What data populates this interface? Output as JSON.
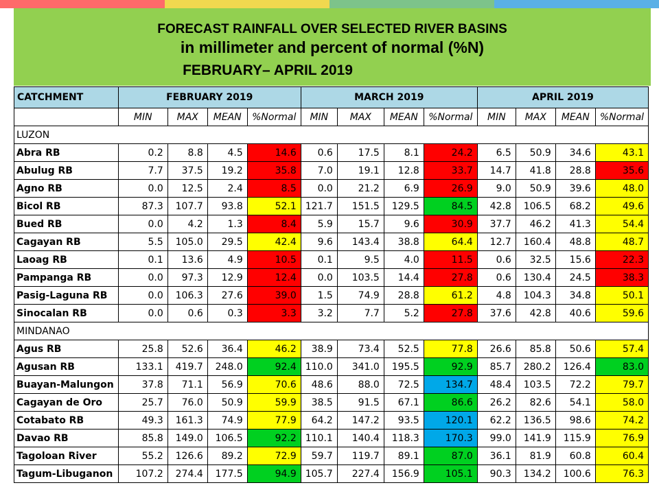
{
  "colors": {
    "header_bg": "#92d050",
    "table_header_bg": "#add8e6",
    "stripes": [
      "#ff6a6a",
      "#f0d84f",
      "#7dc38a",
      "#5ab0e6"
    ],
    "category_colors": {
      "red": "#ff0000",
      "yellow": "#ffff00",
      "green": "#00d020",
      "blue": "#00a8e8"
    }
  },
  "title": {
    "line1": "FORECAST RAINFALL OVER SELECTED RIVER BASINS",
    "line2": "in millimeter  and percent of normal (%N)",
    "line3": "FEBRUARY– APRIL 2019"
  },
  "table": {
    "catchment_label": "CATCHMENT",
    "months": [
      "FEBRUARY 2019",
      "MARCH 2019",
      "APRIL 2019"
    ],
    "subheaders": [
      "MIN",
      "MAX",
      "MEAN",
      "%Normal"
    ],
    "sections": [
      {
        "name": "LUZON",
        "rows": [
          {
            "name": "Abra RB",
            "values": [
              "0.2",
              "8.8",
              "4.5",
              "14.6",
              "0.6",
              "17.5",
              "8.1",
              "24.2",
              "6.5",
              "50.9",
              "34.6",
              "43.1"
            ],
            "colors": [
              "red",
              "red",
              "yellow"
            ]
          },
          {
            "name": "Abulug RB",
            "values": [
              "7.7",
              "37.5",
              "19.2",
              "35.8",
              "7.0",
              "19.1",
              "12.8",
              "33.7",
              "14.7",
              "41.8",
              "28.8",
              "35.6"
            ],
            "colors": [
              "red",
              "red",
              "red"
            ]
          },
          {
            "name": "Agno RB",
            "values": [
              "0.0",
              "12.5",
              "2.4",
              "8.5",
              "0.0",
              "21.2",
              "6.9",
              "26.9",
              "9.0",
              "50.9",
              "39.6",
              "48.0"
            ],
            "colors": [
              "red",
              "red",
              "yellow"
            ]
          },
          {
            "name": "Bicol RB",
            "values": [
              "87.3",
              "107.7",
              "93.8",
              "52.1",
              "121.7",
              "151.5",
              "129.5",
              "84.5",
              "42.8",
              "106.5",
              "68.2",
              "49.6"
            ],
            "colors": [
              "yellow",
              "green",
              "yellow"
            ]
          },
          {
            "name": "Bued RB",
            "values": [
              "0.0",
              "4.2",
              "1.3",
              "8.4",
              "5.9",
              "15.7",
              "9.6",
              "30.9",
              "37.7",
              "46.2",
              "41.3",
              "54.4"
            ],
            "colors": [
              "red",
              "red",
              "yellow"
            ]
          },
          {
            "name": "Cagayan RB",
            "values": [
              "5.5",
              "105.0",
              "29.5",
              "42.4",
              "9.6",
              "143.4",
              "38.8",
              "64.4",
              "12.7",
              "160.4",
              "48.8",
              "48.7"
            ],
            "colors": [
              "yellow",
              "yellow",
              "yellow"
            ]
          },
          {
            "name": "Laoag RB",
            "values": [
              "0.1",
              "13.6",
              "4.9",
              "10.5",
              "0.1",
              "9.5",
              "4.0",
              "11.5",
              "0.6",
              "32.5",
              "15.6",
              "22.3"
            ],
            "colors": [
              "red",
              "red",
              "red"
            ]
          },
          {
            "name": "Pampanga RB",
            "values": [
              "0.0",
              "97.3",
              "12.9",
              "12.4",
              "0.0",
              "103.5",
              "14.4",
              "27.8",
              "0.6",
              "130.4",
              "24.5",
              "38.3"
            ],
            "colors": [
              "red",
              "red",
              "red"
            ]
          },
          {
            "name": "Pasig-Laguna RB",
            "values": [
              "0.0",
              "106.3",
              "27.6",
              "39.0",
              "1.5",
              "74.9",
              "28.8",
              "61.2",
              "4.8",
              "104.3",
              "34.8",
              "50.1"
            ],
            "colors": [
              "red",
              "yellow",
              "yellow"
            ]
          },
          {
            "name": "Sinocalan RB",
            "values": [
              "0.0",
              "0.6",
              "0.3",
              "3.3",
              "3.2",
              "7.7",
              "5.2",
              "27.8",
              "37.6",
              "42.8",
              "40.6",
              "59.6"
            ],
            "colors": [
              "red",
              "red",
              "yellow"
            ]
          }
        ]
      },
      {
        "name": "MINDANAO",
        "rows": [
          {
            "name": "Agus RB",
            "values": [
              "25.8",
              "52.6",
              "36.4",
              "46.2",
              "38.9",
              "73.4",
              "52.5",
              "77.8",
              "26.6",
              "85.8",
              "50.6",
              "57.4"
            ],
            "colors": [
              "yellow",
              "yellow",
              "yellow"
            ]
          },
          {
            "name": "Agusan RB",
            "values": [
              "133.1",
              "419.7",
              "248.0",
              "92.4",
              "110.0",
              "341.0",
              "195.5",
              "92.9",
              "85.7",
              "280.2",
              "126.4",
              "83.0"
            ],
            "colors": [
              "green",
              "green",
              "green"
            ]
          },
          {
            "name": "Buayan-Malungon",
            "values": [
              "37.8",
              "71.1",
              "56.9",
              "70.6",
              "48.6",
              "88.0",
              "72.5",
              "134.7",
              "48.4",
              "103.5",
              "72.2",
              "79.7"
            ],
            "colors": [
              "yellow",
              "blue",
              "yellow"
            ]
          },
          {
            "name": "Cagayan de Oro",
            "values": [
              "25.7",
              "76.0",
              "50.9",
              "59.9",
              "38.5",
              "91.5",
              "67.1",
              "86.6",
              "26.2",
              "82.6",
              "54.1",
              "58.0"
            ],
            "colors": [
              "yellow",
              "green",
              "yellow"
            ]
          },
          {
            "name": "Cotabato RB",
            "values": [
              "49.3",
              "161.3",
              "74.9",
              "77.9",
              "64.2",
              "147.2",
              "93.5",
              "120.1",
              "62.2",
              "136.5",
              "98.6",
              "74.2"
            ],
            "colors": [
              "yellow",
              "blue",
              "yellow"
            ]
          },
          {
            "name": "Davao RB",
            "values": [
              "85.8",
              "149.0",
              "106.5",
              "92.2",
              "110.1",
              "140.4",
              "118.3",
              "170.3",
              "99.0",
              "141.9",
              "115.9",
              "76.9"
            ],
            "colors": [
              "green",
              "blue",
              "yellow"
            ]
          },
          {
            "name": "Tagoloan River",
            "values": [
              "55.2",
              "126.6",
              "89.2",
              "72.9",
              "59.7",
              "119.7",
              "89.1",
              "87.0",
              "36.1",
              "81.9",
              "60.8",
              "60.4"
            ],
            "colors": [
              "yellow",
              "green",
              "yellow"
            ]
          },
          {
            "name": "Tagum-Libuganon",
            "values": [
              "107.2",
              "274.4",
              "177.5",
              "94.9",
              "105.7",
              "227.4",
              "156.9",
              "105.1",
              "90.3",
              "134.2",
              "100.6",
              "76.3"
            ],
            "colors": [
              "green",
              "green",
              "yellow"
            ]
          }
        ]
      }
    ]
  }
}
